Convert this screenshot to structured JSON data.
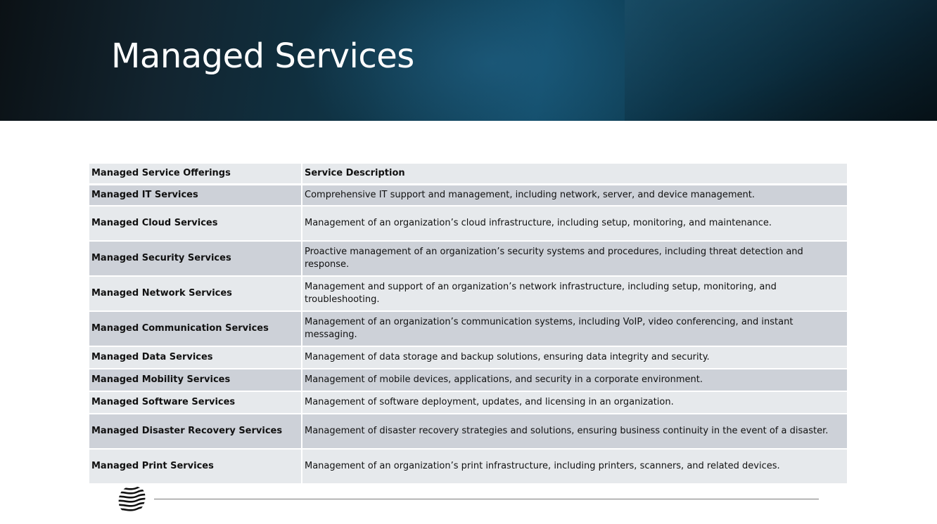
{
  "slide": {
    "title": "Managed Services"
  },
  "table": {
    "headers": [
      "Managed Service Offerings",
      "Service Description"
    ],
    "rows": [
      {
        "name": "Managed IT Services",
        "description": "Comprehensive IT support and management, including network, server, and device management."
      },
      {
        "name": "Managed Cloud Services",
        "description": "Management of an organization’s cloud infrastructure, including setup, monitoring, and maintenance."
      },
      {
        "name": "Managed Security Services",
        "description": "Proactive management of an organization’s security systems and procedures, including threat detection and response."
      },
      {
        "name": "Managed Network Services",
        "description": "Management and support of an organization’s network infrastructure, including setup, monitoring, and troubleshooting."
      },
      {
        "name": "Managed Communication Services",
        "description": "Management of an organization’s communication systems, including VoIP, video conferencing, and instant messaging."
      },
      {
        "name": "Managed Data Services",
        "description": "Management of data storage and backup solutions, ensuring data integrity and security."
      },
      {
        "name": "Managed Mobility Services",
        "description": "Management of mobile devices, applications, and security in a corporate environment."
      },
      {
        "name": "Managed Software Services",
        "description": "Management of software deployment, updates, and licensing in an organization."
      },
      {
        "name": "Managed Disaster Recovery Services",
        "description": "Management of disaster recovery strategies and solutions, ensuring business continuity in the event of a disaster."
      },
      {
        "name": "Managed Print Services",
        "description": "Management of an organization’s print infrastructure, including printers, scanners, and related devices."
      }
    ]
  },
  "footer": {
    "logo_icon": "striped-blob-logo-icon"
  },
  "colors": {
    "banner_dark": "#0b1115",
    "banner_accent": "#114a66",
    "row_dark": "#cdd1d8",
    "row_light": "#e6e9ec"
  }
}
